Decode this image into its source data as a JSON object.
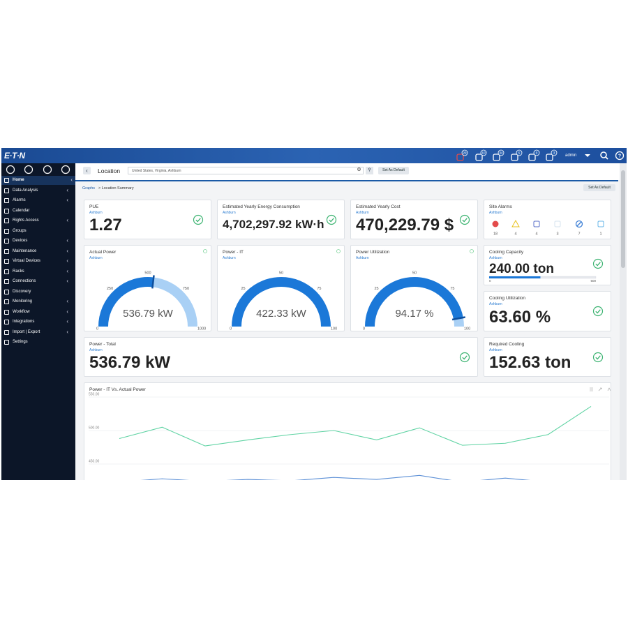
{
  "header": {
    "logo": "E·T·N",
    "notifications": [
      "29",
      "10",
      "34",
      "5",
      "0",
      "3"
    ],
    "user": "admin"
  },
  "sidebar": {
    "items": [
      "Home",
      "Data Analysis",
      "Alarms",
      "Calendar",
      "Rights Access",
      "Groups",
      "Devices",
      "Maintenance",
      "Virtual Devices",
      "Racks",
      "Connections",
      "Discovery",
      "Monitoring",
      "Workflow",
      "Integrations",
      "Import | Export",
      "Settings"
    ]
  },
  "toolbar": {
    "title": "Location",
    "location": "United States, Virginia, Ashburn",
    "button": "Set As Default"
  },
  "breadcrumb": {
    "items": [
      "Graphs",
      "> Location Summary"
    ],
    "button": "Set As Default"
  },
  "cards": [
    {
      "title": "PUE",
      "subtitle": "Ashburn",
      "value": "1.27"
    },
    {
      "title": "Estimated Yearly Energy Consumption",
      "subtitle": "Ashburn",
      "value": "4,702,297.92 kW·h"
    },
    {
      "title": "Estimated Yearly Cost",
      "subtitle": "Ashburn",
      "value": "470,229.79 $"
    },
    {
      "title": "Cooling Utilization",
      "subtitle": "Ashburn",
      "value": "63.60 %"
    },
    {
      "title": "Power - Total",
      "subtitle": "Ashburn",
      "value": "536.79 kW"
    },
    {
      "title": "Required Cooling",
      "subtitle": "Ashburn",
      "value": "152.63 ton"
    }
  ],
  "site_alarms": {
    "title": "Site Alarms",
    "subtitle": "Ashburn",
    "counts": [
      "18",
      "4",
      "4",
      "3",
      "7",
      "1"
    ]
  },
  "cooling_capacity": {
    "title": "Cooling Capacity",
    "subtitle": "Ashburn",
    "value": 240,
    "value_label": "240.00 ton",
    "range": [
      0,
      500
    ]
  },
  "gauges": [
    {
      "title": "Actual Power",
      "subtitle": "Ashburn",
      "range": [
        0,
        1000
      ],
      "ticks": [
        0,
        250,
        500,
        750,
        1000
      ],
      "value": 536.79,
      "value_label": "536.79 kW"
    },
    {
      "title": "Power - IT",
      "subtitle": "Ashburn",
      "range": [
        0,
        100
      ],
      "ticks": [
        0,
        25,
        50,
        75,
        100
      ],
      "value_label": "422.33 kW"
    },
    {
      "title": "Power Utilization",
      "subtitle": "Ashburn",
      "range": [
        0,
        100
      ],
      "ticks": [
        0,
        25,
        50,
        75,
        100
      ],
      "value": 94.17,
      "value_label": "94.17 %"
    }
  ],
  "chart": {
    "type": "line",
    "title": "Power - IT Vs. Actual Power",
    "categories": [
      null,
      null,
      null,
      null,
      null,
      null,
      null,
      null,
      null,
      null,
      null,
      null
    ],
    "ylim": [
      425,
      556
    ],
    "yticks": [
      {
        "value": 450,
        "label": "450.00"
      },
      {
        "value": 500,
        "label": "500.00"
      },
      {
        "value": 550,
        "label": "550.00"
      }
    ],
    "grid": true,
    "series": [
      {
        "color": "#5fd3a3",
        "values": [
          488,
          505,
          477,
          486,
          494,
          500,
          486,
          504,
          478,
          481,
          494,
          536
        ]
      },
      {
        "color": "#5b8fd6",
        "values": [
          423,
          428,
          424,
          427,
          425,
          430,
          427,
          433,
          423,
          429,
          423,
          422
        ]
      }
    ]
  }
}
